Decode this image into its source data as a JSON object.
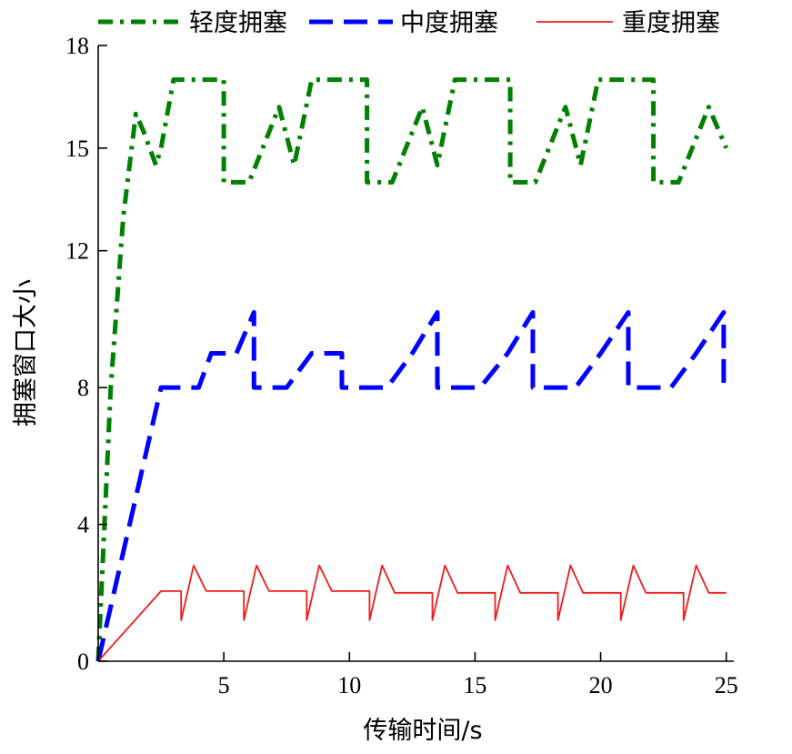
{
  "chart_data": {
    "type": "line",
    "title": "",
    "xlabel": "传输时间/s",
    "ylabel": "拥塞窗口大小",
    "xlim": [
      0,
      25.3
    ],
    "ylim": [
      0,
      18
    ],
    "xticks": [
      5,
      10,
      15,
      20,
      25
    ],
    "xtick_labels": [
      "5",
      "10",
      "15",
      "20",
      "25"
    ],
    "yticks": [
      0,
      4,
      8,
      12,
      15,
      18
    ],
    "ytick_labels": [
      "0",
      "4",
      "8",
      "12",
      "15",
      "18"
    ],
    "legend_position": "top",
    "series": [
      {
        "name": "轻度拥塞",
        "color": "#008000",
        "dash": "dashdot",
        "x": [
          0,
          0.5,
          1.0,
          1.5,
          1.8,
          2.3,
          2.5,
          3.0,
          4.5,
          5.0,
          5.0,
          6.0,
          7.2,
          7.8,
          8.5,
          9.5,
          10.7,
          10.7,
          11.7,
          12.9,
          13.5,
          14.2,
          15.2,
          16.4,
          16.4,
          17.4,
          18.6,
          19.2,
          19.9,
          20.9,
          22.1,
          22.1,
          23.1,
          24.3,
          25.0
        ],
        "y": [
          0,
          8,
          13,
          16,
          15.5,
          14.5,
          15,
          17,
          17,
          17,
          14,
          14,
          16.2,
          14.5,
          17,
          17,
          17,
          14,
          14,
          16.2,
          14.5,
          17,
          17,
          17,
          14,
          14,
          16.2,
          14.5,
          17,
          17,
          17,
          14,
          14,
          16.2,
          15
        ]
      },
      {
        "name": "中度拥塞",
        "color": "#0000ff",
        "dash": "dash",
        "x": [
          0,
          2.5,
          4.0,
          4.5,
          5.5,
          6.2,
          6.2,
          7.5,
          8.5,
          9.7,
          9.7,
          11.5,
          12.5,
          13.5,
          13.5,
          15.2,
          16.3,
          17.3,
          17.3,
          19.0,
          20.0,
          21.1,
          21.1,
          22.8,
          23.8,
          24.9,
          24.9
        ],
        "y": [
          0,
          8,
          8,
          9,
          9,
          10.2,
          8,
          8,
          9,
          9,
          8,
          8,
          9,
          10.2,
          8,
          8,
          9,
          10.2,
          8,
          8,
          9,
          10.2,
          8,
          8,
          9,
          10.2,
          8
        ]
      },
      {
        "name": "重度拥塞",
        "color": "#ee1c1c",
        "dash": "solid",
        "x": [
          0,
          2.5,
          3.3,
          3.3,
          3.8,
          4.3,
          5.8,
          5.8,
          6.3,
          6.8,
          8.3,
          8.3,
          8.8,
          9.3,
          10.8,
          10.8,
          11.3,
          11.8,
          13.3,
          13.3,
          13.8,
          14.3,
          15.8,
          15.8,
          16.3,
          16.8,
          18.3,
          18.3,
          18.8,
          19.3,
          20.8,
          20.8,
          21.3,
          21.8,
          23.3,
          23.3,
          23.8,
          24.3,
          25.0
        ],
        "y": [
          0,
          2.05,
          2.05,
          1.2,
          2.8,
          2.05,
          2.05,
          1.2,
          2.8,
          2.05,
          2.05,
          1.2,
          2.8,
          2.05,
          2.05,
          1.2,
          2.8,
          2.0,
          2.0,
          1.2,
          2.8,
          2.0,
          2.0,
          1.2,
          2.8,
          2.0,
          2.0,
          1.2,
          2.8,
          2.0,
          2.0,
          1.2,
          2.8,
          2.0,
          2.0,
          1.2,
          2.8,
          2.0,
          2.0
        ]
      }
    ]
  }
}
